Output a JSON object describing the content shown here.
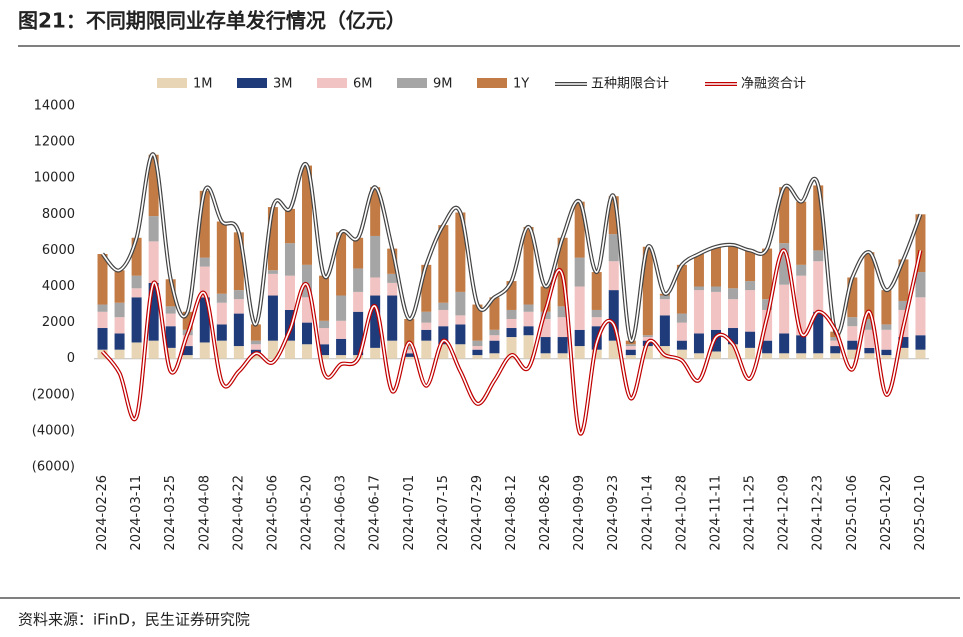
{
  "chart_data": {
    "type": "bar",
    "title": "图21：不同期限同业存单发行情况（亿元）",
    "source": "资料来源：iFinD，民生证券研究院",
    "categories": [
      "2024-02-26",
      null,
      "2024-03-11",
      null,
      "2024-03-25",
      null,
      "2024-04-08",
      null,
      "2024-04-22",
      null,
      "2024-05-06",
      null,
      "2024-05-20",
      null,
      "2024-06-03",
      null,
      "2024-06-17",
      null,
      "2024-07-01",
      null,
      "2024-07-15",
      null,
      "2024-07-29",
      null,
      "2024-08-12",
      null,
      "2024-08-26",
      null,
      "2024-09-09",
      null,
      "2024-09-23",
      null,
      "2024-10-14",
      null,
      "2024-10-28",
      null,
      "2024-11-11",
      null,
      "2024-11-25",
      null,
      "2024-12-09",
      null,
      "2024-12-23",
      null,
      "2025-01-06",
      null,
      "2025-01-20",
      null,
      "2025-02-10"
    ],
    "series": [
      {
        "name": "1M",
        "color": "#e8d5b5",
        "values": [
          500,
          500,
          900,
          1000,
          600,
          200,
          900,
          1000,
          700,
          200,
          1000,
          1000,
          800,
          200,
          200,
          200,
          600,
          1000,
          100,
          1000,
          800,
          800,
          200,
          300,
          1200,
          1300,
          300,
          300,
          700,
          500,
          1000,
          200,
          700,
          700,
          500,
          300,
          400,
          800,
          600,
          300,
          300,
          300,
          300,
          300,
          500,
          300,
          200,
          600,
          500
        ]
      },
      {
        "name": "3M",
        "color": "#1f3b7a",
        "values": [
          1200,
          900,
          2500,
          3200,
          1200,
          500,
          2500,
          900,
          1800,
          300,
          2500,
          1700,
          1200,
          600,
          900,
          2400,
          2900,
          2500,
          200,
          600,
          1000,
          1100,
          300,
          700,
          500,
          500,
          900,
          900,
          900,
          1300,
          2800,
          300,
          300,
          1700,
          500,
          1100,
          1200,
          900,
          900,
          700,
          1100,
          1000,
          2300,
          400,
          500,
          300,
          300,
          600,
          800
        ]
      },
      {
        "name": "6M",
        "color": "#f2c3c3",
        "values": [
          900,
          900,
          500,
          2300,
          700,
          600,
          1700,
          1200,
          800,
          300,
          1200,
          1900,
          1400,
          900,
          1000,
          1100,
          1000,
          700,
          200,
          400,
          900,
          500,
          200,
          300,
          500,
          800,
          1000,
          1100,
          2400,
          500,
          1600,
          200,
          200,
          900,
          1000,
          2400,
          2100,
          1600,
          2300,
          1700,
          2700,
          3300,
          2800,
          300,
          800,
          1000,
          1100,
          1500,
          2100
        ]
      },
      {
        "name": "9M",
        "color": "#a5a5a5",
        "values": [
          400,
          800,
          700,
          1400,
          400,
          300,
          500,
          500,
          500,
          200,
          200,
          1800,
          1800,
          400,
          1400,
          1300,
          2300,
          500,
          200,
          600,
          400,
          1300,
          300,
          300,
          500,
          400,
          400,
          600,
          1600,
          400,
          1500,
          100,
          100,
          200,
          500,
          200,
          300,
          600,
          500,
          600,
          2300,
          600,
          600,
          200,
          500,
          600,
          300,
          500,
          1400
        ]
      },
      {
        "name": "1Y",
        "color": "#c27b45",
        "values": [
          2800,
          1800,
          2100,
          3400,
          1500,
          1000,
          3700,
          4000,
          3200,
          900,
          3500,
          1900,
          5500,
          2500,
          3500,
          1700,
          2700,
          1400,
          1500,
          2600,
          4300,
          4400,
          2000,
          1800,
          1600,
          4300,
          1400,
          3800,
          3100,
          2100,
          2100,
          200,
          4900,
          100,
          2700,
          1800,
          2200,
          2400,
          1700,
          2800,
          3100,
          3500,
          3600,
          300,
          2200,
          3700,
          1900,
          2300,
          3200
        ]
      }
    ],
    "lines": [
      {
        "name": "五种期限合计",
        "color": "#444444",
        "values": [
          5800,
          4900,
          6700,
          11300,
          4400,
          2600,
          9300,
          7600,
          7000,
          1900,
          8400,
          8300,
          10700,
          4600,
          7000,
          6700,
          9500,
          6100,
          2200,
          5200,
          7400,
          8100,
          3000,
          3400,
          4300,
          7300,
          4000,
          6700,
          8700,
          4800,
          9000,
          1000,
          6200,
          3600,
          5200,
          5800,
          6200,
          6300,
          6000,
          6100,
          9500,
          8700,
          9600,
          1500,
          4500,
          5900,
          3800,
          5500,
          8000
        ]
      },
      {
        "name": "净融资合计",
        "color": "#c00000",
        "values": [
          400,
          -800,
          -3200,
          4200,
          -700,
          1400,
          3600,
          -1300,
          -700,
          300,
          -200,
          1600,
          4100,
          -800,
          -300,
          0,
          2900,
          -1800,
          900,
          -1500,
          1000,
          -700,
          -2500,
          -1200,
          200,
          -500,
          2700,
          4600,
          -4100,
          900,
          1900,
          -2200,
          900,
          200,
          -100,
          -1200,
          1200,
          800,
          -1100,
          2300,
          6000,
          1400,
          2600,
          1600,
          -600,
          2600,
          -2000,
          1800,
          6000
        ]
      }
    ],
    "ylim": [
      -6000,
      14000
    ],
    "yticks": [
      {
        "value": -6000,
        "label": "(6000)"
      },
      {
        "value": -4000,
        "label": "(4000)"
      },
      {
        "value": -2000,
        "label": "(2000)"
      },
      0,
      2000,
      4000,
      6000,
      8000,
      10000,
      12000,
      14000
    ]
  }
}
